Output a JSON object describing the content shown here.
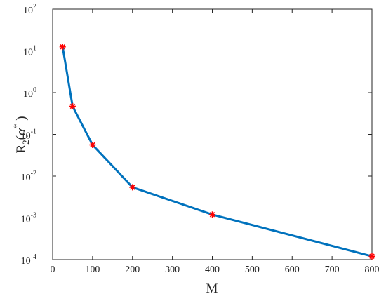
{
  "chart_data": {
    "type": "line",
    "title": "",
    "xlabel": "M",
    "ylabel": {
      "base": "R",
      "subscript": "2",
      "open": "(",
      "symbol": "α",
      "superscript": "*",
      "close": " )"
    },
    "x": [
      25,
      50,
      100,
      200,
      400,
      800
    ],
    "y": [
      12.5,
      0.47,
      0.056,
      0.0054,
      0.0012,
      0.00012
    ],
    "xlim": [
      0,
      800
    ],
    "ylim": [
      0.0001,
      100
    ],
    "yscale": "log",
    "xticks": [
      0,
      100,
      200,
      300,
      400,
      500,
      600,
      700,
      800
    ],
    "yticks": [
      {
        "value": 0.0001,
        "base": "10",
        "exp": "-4"
      },
      {
        "value": 0.001,
        "base": "10",
        "exp": "-3"
      },
      {
        "value": 0.01,
        "base": "10",
        "exp": "-2"
      },
      {
        "value": 0.1,
        "base": "10",
        "exp": "-1"
      },
      {
        "value": 1,
        "base": "10",
        "exp": "0"
      },
      {
        "value": 10,
        "base": "10",
        "exp": "1"
      },
      {
        "value": 100,
        "base": "10",
        "exp": "2"
      }
    ],
    "grid": false,
    "line_color": "#0072BD",
    "marker": "asterisk",
    "marker_color": "#FF0000",
    "axis_color": "#262626"
  }
}
